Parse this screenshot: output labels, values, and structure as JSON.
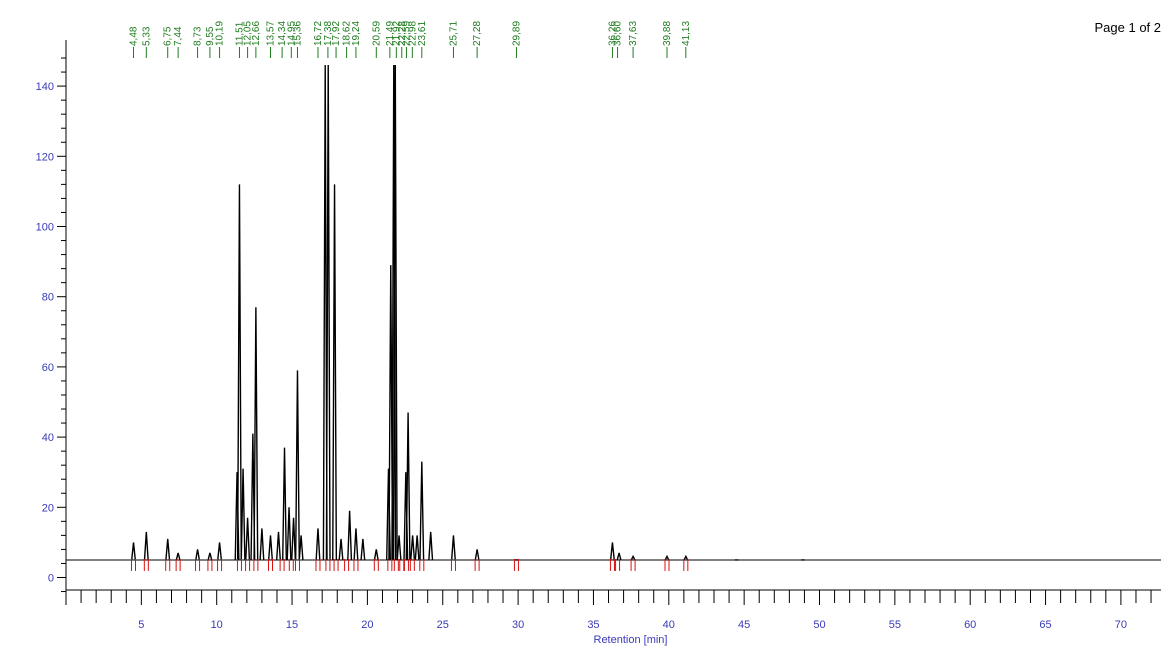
{
  "page": {
    "label": "Page 1 of 2"
  },
  "colors": {
    "trace": "#000000",
    "axis": "#000000",
    "tick_text": "#3a3ab8",
    "rt_marker": "#1e7b1e",
    "int_marker": "#d81010",
    "annot": "#d81ad8"
  },
  "chart_data": {
    "type": "line",
    "title": "",
    "xlabel": "Retention [min]",
    "ylabel": "",
    "xlim": [
      0,
      73
    ],
    "ylim": [
      0,
      150
    ],
    "xticks": [
      5,
      10,
      15,
      20,
      25,
      30,
      35,
      40,
      45,
      50,
      55,
      60,
      65,
      70
    ],
    "yticks": [
      0,
      20,
      40,
      60,
      80,
      100,
      120,
      140
    ],
    "baseline": 5,
    "peaks": [
      [
        4.48,
        10
      ],
      [
        5.33,
        13
      ],
      [
        6.75,
        11
      ],
      [
        7.44,
        7
      ],
      [
        8.73,
        8
      ],
      [
        9.55,
        7
      ],
      [
        10.19,
        10
      ],
      [
        11.35,
        30
      ],
      [
        11.51,
        112
      ],
      [
        11.75,
        31
      ],
      [
        12.05,
        17
      ],
      [
        12.4,
        41
      ],
      [
        12.6,
        77
      ],
      [
        13.0,
        14
      ],
      [
        13.57,
        12
      ],
      [
        14.1,
        13
      ],
      [
        14.5,
        37
      ],
      [
        14.8,
        20
      ],
      [
        15.1,
        17
      ],
      [
        15.36,
        59
      ],
      [
        15.6,
        12
      ],
      [
        16.72,
        14
      ],
      [
        17.2,
        146
      ],
      [
        17.4,
        146
      ],
      [
        17.82,
        112
      ],
      [
        18.25,
        11
      ],
      [
        18.82,
        19
      ],
      [
        19.24,
        14
      ],
      [
        19.7,
        11
      ],
      [
        20.59,
        8
      ],
      [
        21.4,
        31
      ],
      [
        21.55,
        89
      ],
      [
        21.75,
        146
      ],
      [
        21.85,
        146
      ],
      [
        22.1,
        12
      ],
      [
        22.55,
        30
      ],
      [
        22.7,
        47
      ],
      [
        23.0,
        12
      ],
      [
        23.3,
        12
      ],
      [
        23.61,
        33
      ],
      [
        24.2,
        13
      ],
      [
        25.71,
        12
      ],
      [
        27.28,
        8
      ],
      [
        29.89,
        5
      ],
      [
        36.26,
        10
      ],
      [
        36.7,
        7
      ],
      [
        37.63,
        6
      ],
      [
        39.88,
        6
      ],
      [
        41.13,
        6
      ],
      [
        44.5,
        5
      ],
      [
        48.9,
        5
      ]
    ],
    "rt_labels": [
      [
        "4,48",
        4.48
      ],
      [
        "5,33",
        5.33
      ],
      [
        "6,75",
        6.75
      ],
      [
        "7,44",
        7.44
      ],
      [
        "8,73",
        8.73
      ],
      [
        "9,55",
        9.55
      ],
      [
        "10,19",
        10.19
      ],
      [
        "11,51",
        11.51
      ],
      [
        "12,05",
        12.05
      ],
      [
        "12,66",
        12.6
      ],
      [
        "13,57",
        13.57
      ],
      [
        "14,34",
        14.34
      ],
      [
        "14,95",
        14.95
      ],
      [
        "15,36",
        15.36
      ],
      [
        "16,72",
        16.72
      ],
      [
        "17,38",
        17.38
      ],
      [
        "17,92",
        17.92
      ],
      [
        "18,62",
        18.62
      ],
      [
        "19,24",
        19.24
      ],
      [
        "20,59",
        20.59
      ],
      [
        "21,49",
        21.49
      ],
      [
        "21,92",
        21.92
      ],
      [
        "22,28",
        22.28
      ],
      [
        "22,59",
        22.59
      ],
      [
        "22,98",
        22.98
      ],
      [
        "23,61",
        23.61
      ],
      [
        "25,71",
        25.71
      ],
      [
        "27,28",
        27.28
      ],
      [
        "29,89",
        29.89
      ],
      [
        "36,26",
        36.26
      ],
      [
        "36,60",
        36.6
      ],
      [
        "37,63",
        37.63
      ],
      [
        "39,88",
        39.88
      ],
      [
        "41,13",
        41.13
      ]
    ]
  }
}
